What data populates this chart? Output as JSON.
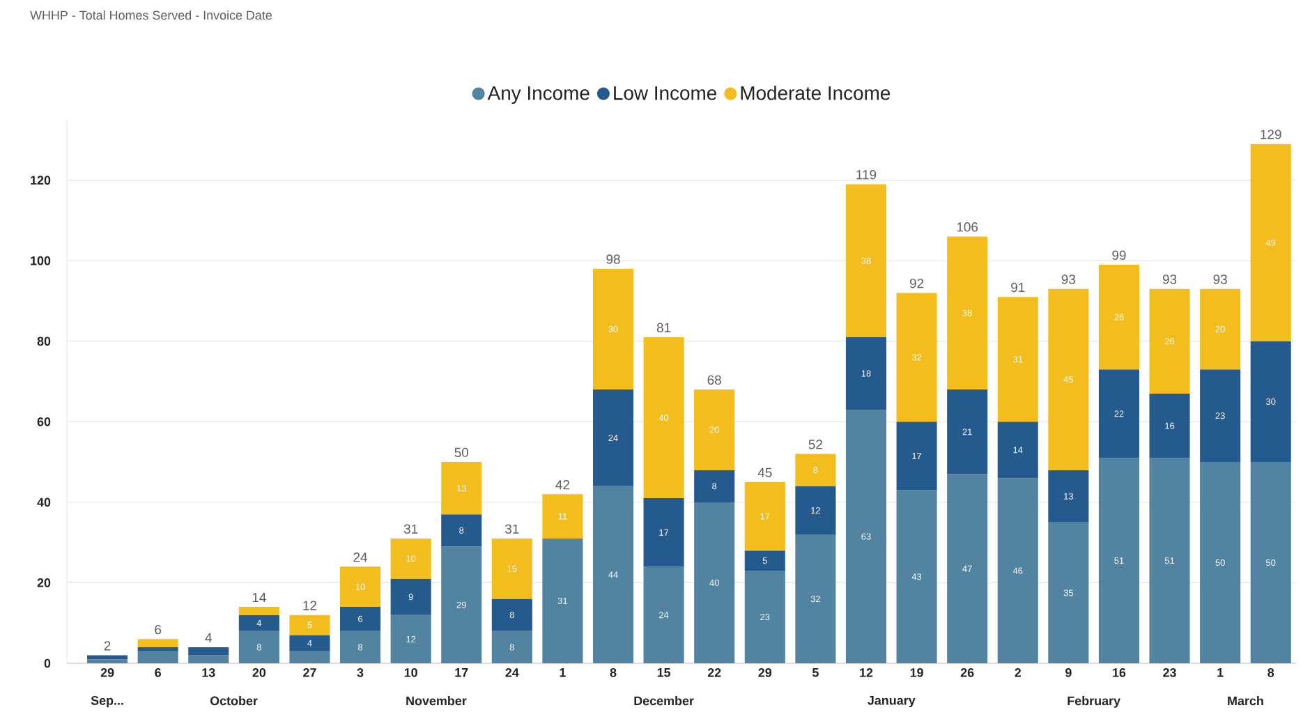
{
  "chart_data": {
    "type": "bar",
    "title": "WHHP - Total Homes Served - Invoice Date",
    "categories": [
      "29",
      "6",
      "13",
      "20",
      "27",
      "3",
      "10",
      "17",
      "24",
      "1",
      "8",
      "15",
      "22",
      "29",
      "5",
      "12",
      "19",
      "26",
      "2",
      "9",
      "16",
      "23",
      "1",
      "8"
    ],
    "stacked": true,
    "legend": "top",
    "grid": "y",
    "ylim": [
      0,
      135
    ],
    "yticks": [
      0,
      20,
      40,
      60,
      80,
      100,
      120
    ],
    "series": [
      {
        "name": "Any Income",
        "color": "#5283a0",
        "values": [
          1,
          3,
          2,
          8,
          3,
          8,
          12,
          29,
          8,
          31,
          44,
          24,
          40,
          23,
          32,
          63,
          43,
          47,
          46,
          35,
          51,
          51,
          50,
          50
        ],
        "value_labels": [
          null,
          null,
          null,
          "8",
          null,
          "8",
          "12",
          "29",
          "8",
          "31",
          "44",
          "24",
          "40",
          "23",
          "32",
          "63",
          "43",
          "47",
          "46",
          "35",
          "51",
          "51",
          "50",
          "50"
        ]
      },
      {
        "name": "Low Income",
        "color": "#245a8e",
        "values": [
          1,
          1,
          2,
          4,
          4,
          6,
          9,
          8,
          8,
          null,
          24,
          17,
          8,
          5,
          12,
          18,
          17,
          21,
          14,
          13,
          22,
          16,
          23,
          30
        ],
        "value_labels": [
          null,
          null,
          null,
          "4",
          "4",
          "6",
          "9",
          "8",
          "8",
          null,
          "24",
          "17",
          "8",
          "5",
          "12",
          "18",
          "17",
          "21",
          "14",
          "13",
          "22",
          "16",
          "23",
          "30"
        ]
      },
      {
        "name": "Moderate Income",
        "color": "#f2bd1d",
        "values": [
          null,
          2,
          null,
          2,
          5,
          10,
          10,
          13,
          15,
          11,
          30,
          40,
          20,
          17,
          8,
          38,
          32,
          38,
          31,
          45,
          26,
          26,
          20,
          49
        ],
        "value_labels": [
          null,
          null,
          null,
          null,
          "5",
          "10",
          "10",
          "13",
          "15",
          "11",
          "30",
          "40",
          "20",
          "17",
          "8",
          "38",
          "32",
          "38",
          "31",
          "45",
          "26",
          "26",
          "20",
          "49"
        ]
      }
    ],
    "totals": [
      "2",
      "6",
      "4",
      "14",
      "12",
      "24",
      "31",
      "50",
      "31",
      "42",
      "98",
      "81",
      "68",
      "45",
      "52",
      "119",
      "92",
      "106",
      "91",
      "93",
      "99",
      "93",
      "93",
      "129"
    ],
    "annotations": [
      "Sep...",
      "October",
      "November",
      "December",
      "January",
      "February",
      "March"
    ]
  }
}
